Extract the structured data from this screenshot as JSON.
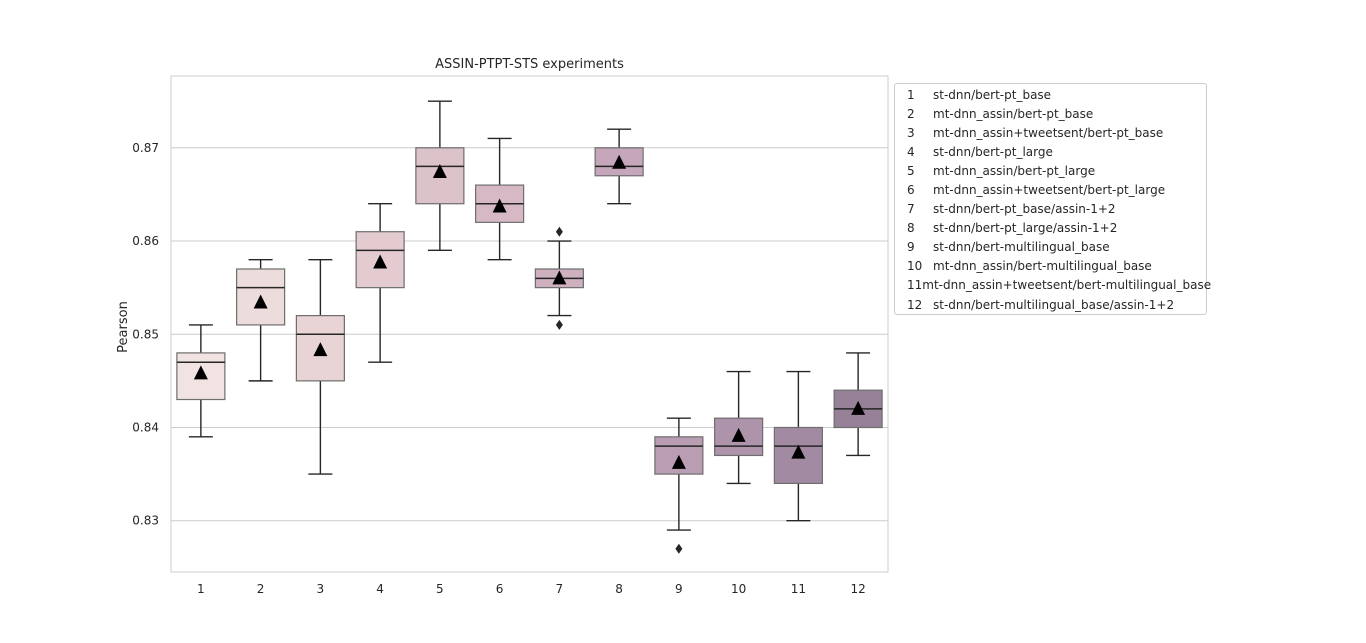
{
  "chart_data": {
    "type": "box",
    "title": "ASSIN-PTPT-STS experiments",
    "xlabel": "",
    "ylabel": "Pearson",
    "ylim": [
      0.8245,
      0.8777
    ],
    "yticks": [
      0.83,
      0.84,
      0.85,
      0.86,
      0.87
    ],
    "ytick_labels": [
      "0.83",
      "0.84",
      "0.85",
      "0.86",
      "0.87"
    ],
    "grid": "horizontal",
    "legend_position": "outside-right",
    "categories": [
      "1",
      "2",
      "3",
      "4",
      "5",
      "6",
      "7",
      "8",
      "9",
      "10",
      "11",
      "12"
    ],
    "series": [
      {
        "key": "1",
        "name": "st-dnn/bert-pt_base",
        "whisker_low": 0.839,
        "q1": 0.843,
        "median": 0.847,
        "q3": 0.848,
        "whisker_high": 0.851,
        "mean": 0.8458,
        "outliers": [],
        "color": "#f0e3e1"
      },
      {
        "key": "2",
        "name": "mt-dnn_assin/bert-pt_base",
        "whisker_low": 0.845,
        "q1": 0.851,
        "median": 0.855,
        "q3": 0.857,
        "whisker_high": 0.858,
        "mean": 0.8534,
        "outliers": [],
        "color": "#ecdcdb"
      },
      {
        "key": "3",
        "name": "mt-dnn_assin+tweetsent/bert-pt_base",
        "whisker_low": 0.835,
        "q1": 0.845,
        "median": 0.85,
        "q3": 0.852,
        "whisker_high": 0.858,
        "mean": 0.8483,
        "outliers": [],
        "color": "#e8d4d5"
      },
      {
        "key": "4",
        "name": "st-dnn/bert-pt_large",
        "whisker_low": 0.847,
        "q1": 0.855,
        "median": 0.859,
        "q3": 0.861,
        "whisker_high": 0.864,
        "mean": 0.8577,
        "outliers": [],
        "color": "#e3cbd0"
      },
      {
        "key": "5",
        "name": "mt-dnn_assin/bert-pt_large",
        "whisker_low": 0.859,
        "q1": 0.864,
        "median": 0.868,
        "q3": 0.87,
        "whisker_high": 0.875,
        "mean": 0.8674,
        "outliers": [],
        "color": "#dcc2c9"
      },
      {
        "key": "6",
        "name": "mt-dnn_assin+tweetsent/bert-pt_large",
        "whisker_low": 0.858,
        "q1": 0.862,
        "median": 0.864,
        "q3": 0.866,
        "whisker_high": 0.871,
        "mean": 0.8637,
        "outliers": [],
        "color": "#d6b9c5"
      },
      {
        "key": "7",
        "name": "st-dnn/bert-pt_base/assin-1+2",
        "whisker_low": 0.852,
        "q1": 0.855,
        "median": 0.856,
        "q3": 0.857,
        "whisker_high": 0.86,
        "mean": 0.856,
        "outliers": [
          0.851,
          0.861
        ],
        "color": "#ceb0bf"
      },
      {
        "key": "8",
        "name": "st-dnn/bert-pt_large/assin-1+2",
        "whisker_low": 0.864,
        "q1": 0.867,
        "median": 0.868,
        "q3": 0.87,
        "whisker_high": 0.872,
        "mean": 0.8684,
        "outliers": [],
        "color": "#c5a6ba"
      },
      {
        "key": "9",
        "name": "st-dnn/bert-multilingual_base",
        "whisker_low": 0.829,
        "q1": 0.835,
        "median": 0.838,
        "q3": 0.839,
        "whisker_high": 0.841,
        "mean": 0.8362,
        "outliers": [
          0.827
        ],
        "color": "#b99db3"
      },
      {
        "key": "10",
        "name": "mt-dnn_assin/bert-multilingual_base",
        "whisker_low": 0.834,
        "q1": 0.837,
        "median": 0.838,
        "q3": 0.841,
        "whisker_high": 0.846,
        "mean": 0.8391,
        "outliers": [],
        "color": "#ad94aa"
      },
      {
        "key": "11",
        "name": "mt-dnn_assin+tweetsent/bert-multilingual_base",
        "whisker_low": 0.83,
        "q1": 0.834,
        "median": 0.838,
        "q3": 0.84,
        "whisker_high": 0.846,
        "mean": 0.8373,
        "outliers": [],
        "color": "#a28ba2"
      },
      {
        "key": "12",
        "name": "st-dnn/bert-multilingual_base/assin-1+2",
        "whisker_low": 0.837,
        "q1": 0.84,
        "median": 0.842,
        "q3": 0.844,
        "whisker_high": 0.848,
        "mean": 0.842,
        "outliers": [],
        "color": "#978199"
      }
    ]
  }
}
